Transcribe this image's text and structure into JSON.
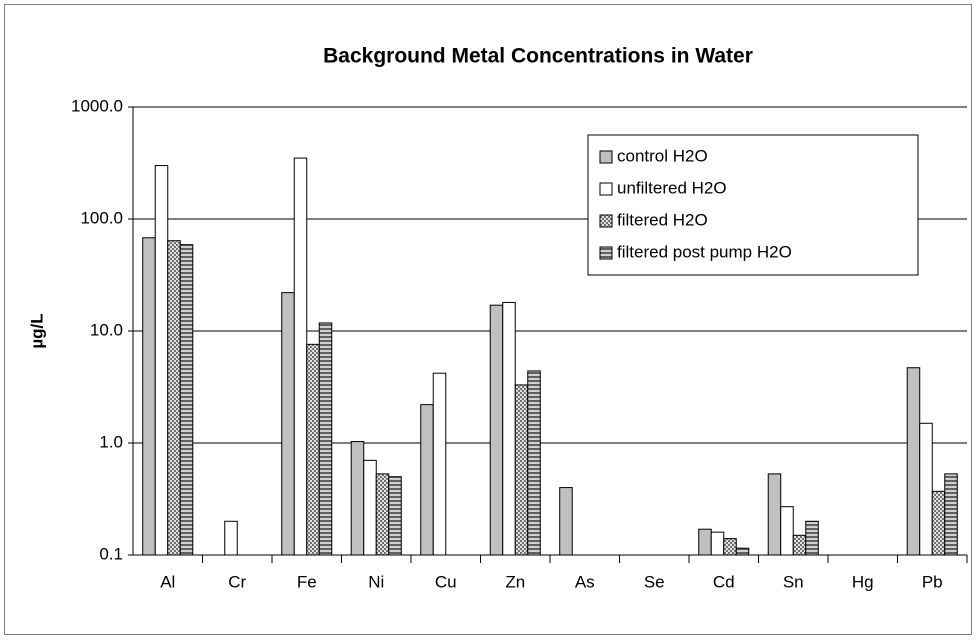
{
  "chart_data": {
    "type": "bar",
    "title": "Background Metal Concentrations in Water",
    "y_label": "µg/L",
    "categories": [
      "Al",
      "Cr",
      "Fe",
      "Ni",
      "Cu",
      "Zn",
      "As",
      "Se",
      "Cd",
      "Sn",
      "Hg",
      "Pb"
    ],
    "series": [
      {
        "name": "control H2O",
        "color": "#c0c0c0",
        "pattern": "solid",
        "values": [
          68,
          0.1,
          22,
          1.03,
          2.2,
          17,
          0.4,
          0.1,
          0.17,
          0.53,
          0.1,
          4.7
        ]
      },
      {
        "name": "unfiltered H2O",
        "color": "#ffffff",
        "pattern": "solid",
        "values": [
          300,
          0.2,
          350,
          0.7,
          4.2,
          18,
          0.1,
          0.1,
          0.16,
          0.27,
          0.1,
          1.5
        ]
      },
      {
        "name": "filtered H2O",
        "color": "#a0a0a0",
        "pattern": "dots",
        "values": [
          64,
          0.1,
          7.6,
          0.53,
          0.1,
          3.3,
          0.1,
          0.1,
          0.14,
          0.15,
          0.1,
          0.37
        ]
      },
      {
        "name": "filtered post pump H2O",
        "color": "#808080",
        "pattern": "stripes",
        "values": [
          59,
          0.1,
          11.8,
          0.5,
          0.1,
          4.4,
          0.1,
          0.1,
          0.115,
          0.2,
          0.1,
          0.53
        ]
      }
    ],
    "ylim": [
      0.1,
      1000
    ],
    "log_scale": true,
    "grid": true,
    "legend": "upper right",
    "yticks": [
      {
        "value": 0.1,
        "label": "0.1"
      },
      {
        "value": 1,
        "label": "1.0"
      },
      {
        "value": 10,
        "label": "10.0"
      },
      {
        "value": 100,
        "label": "100.0"
      },
      {
        "value": 1000,
        "label": "1000.0"
      }
    ]
  }
}
